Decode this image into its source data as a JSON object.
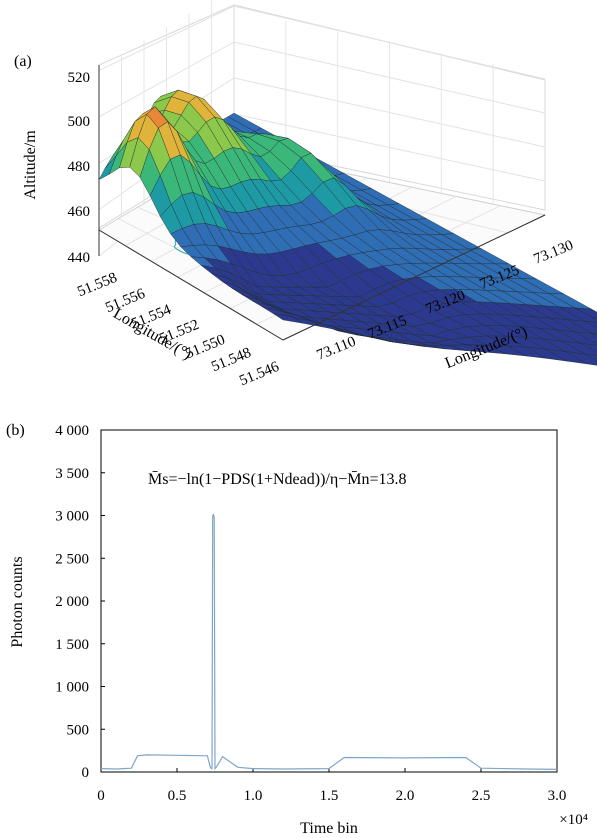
{
  "chart_data": [
    {
      "panel": "(a)",
      "type": "surface",
      "zlabel": "Altitude/m",
      "xlabel": "Longitude/(°)",
      "ylabel": "Longitude/(°)",
      "z_ticks": [
        "440",
        "460",
        "480",
        "500",
        "520"
      ],
      "z_values": [
        440,
        460,
        480,
        500,
        520
      ],
      "zlim": [
        440,
        520
      ],
      "left_axis_ticks": [
        "51.558",
        "51.556",
        "51.554",
        "51.552",
        "51.550",
        "51.548",
        "51.546"
      ],
      "right_axis_ticks": [
        "73.110",
        "73.115",
        "73.120",
        "73.125",
        "73.130"
      ],
      "colormap": [
        "#2b3a8f",
        "#2f6db5",
        "#1e9aa5",
        "#3bb77a",
        "#8cc84b",
        "#e0b43a",
        "#e8873a"
      ],
      "has_contour_projection": true,
      "grid": true
    },
    {
      "panel": "(b)",
      "type": "line",
      "xlabel": "Time bin",
      "ylabel": "Photon counts",
      "x_multiplier": "×10⁴",
      "x_ticks": [
        "0",
        "0.5",
        "1.0",
        "1.5",
        "2.0",
        "2.5",
        "3.0"
      ],
      "x_tick_values": [
        0,
        0.5,
        1.0,
        1.5,
        2.0,
        2.5,
        3.0
      ],
      "y_ticks": [
        "0",
        "500",
        "1 000",
        "1 500",
        "2 000",
        "2 500",
        "3 000",
        "3 500",
        "4 000"
      ],
      "y_tick_values": [
        0,
        500,
        1000,
        1500,
        2000,
        2500,
        3000,
        3500,
        4000
      ],
      "xlim": [
        0,
        3.0
      ],
      "ylim": [
        0,
        4000
      ],
      "annotation": "M̄s=−ln(1−PDS(1+Ndead))/η−M̄n=13.8",
      "series_color": "#7fa6c9",
      "series": [
        {
          "x": [
            0,
            0.1,
            0.2,
            0.24,
            0.3,
            0.5,
            0.7,
            0.72,
            0.73,
            0.735,
            0.74,
            0.745,
            0.75,
            0.76,
            0.8,
            0.9,
            1.0,
            1.2,
            1.5,
            1.6,
            2.0,
            2.4,
            2.5,
            2.8,
            3.0
          ],
          "y": [
            40,
            35,
            45,
            190,
            200,
            195,
            190,
            50,
            40,
            3000,
            3010,
            2980,
            40,
            60,
            180,
            55,
            40,
            35,
            40,
            170,
            165,
            170,
            45,
            35,
            30
          ]
        }
      ]
    }
  ]
}
